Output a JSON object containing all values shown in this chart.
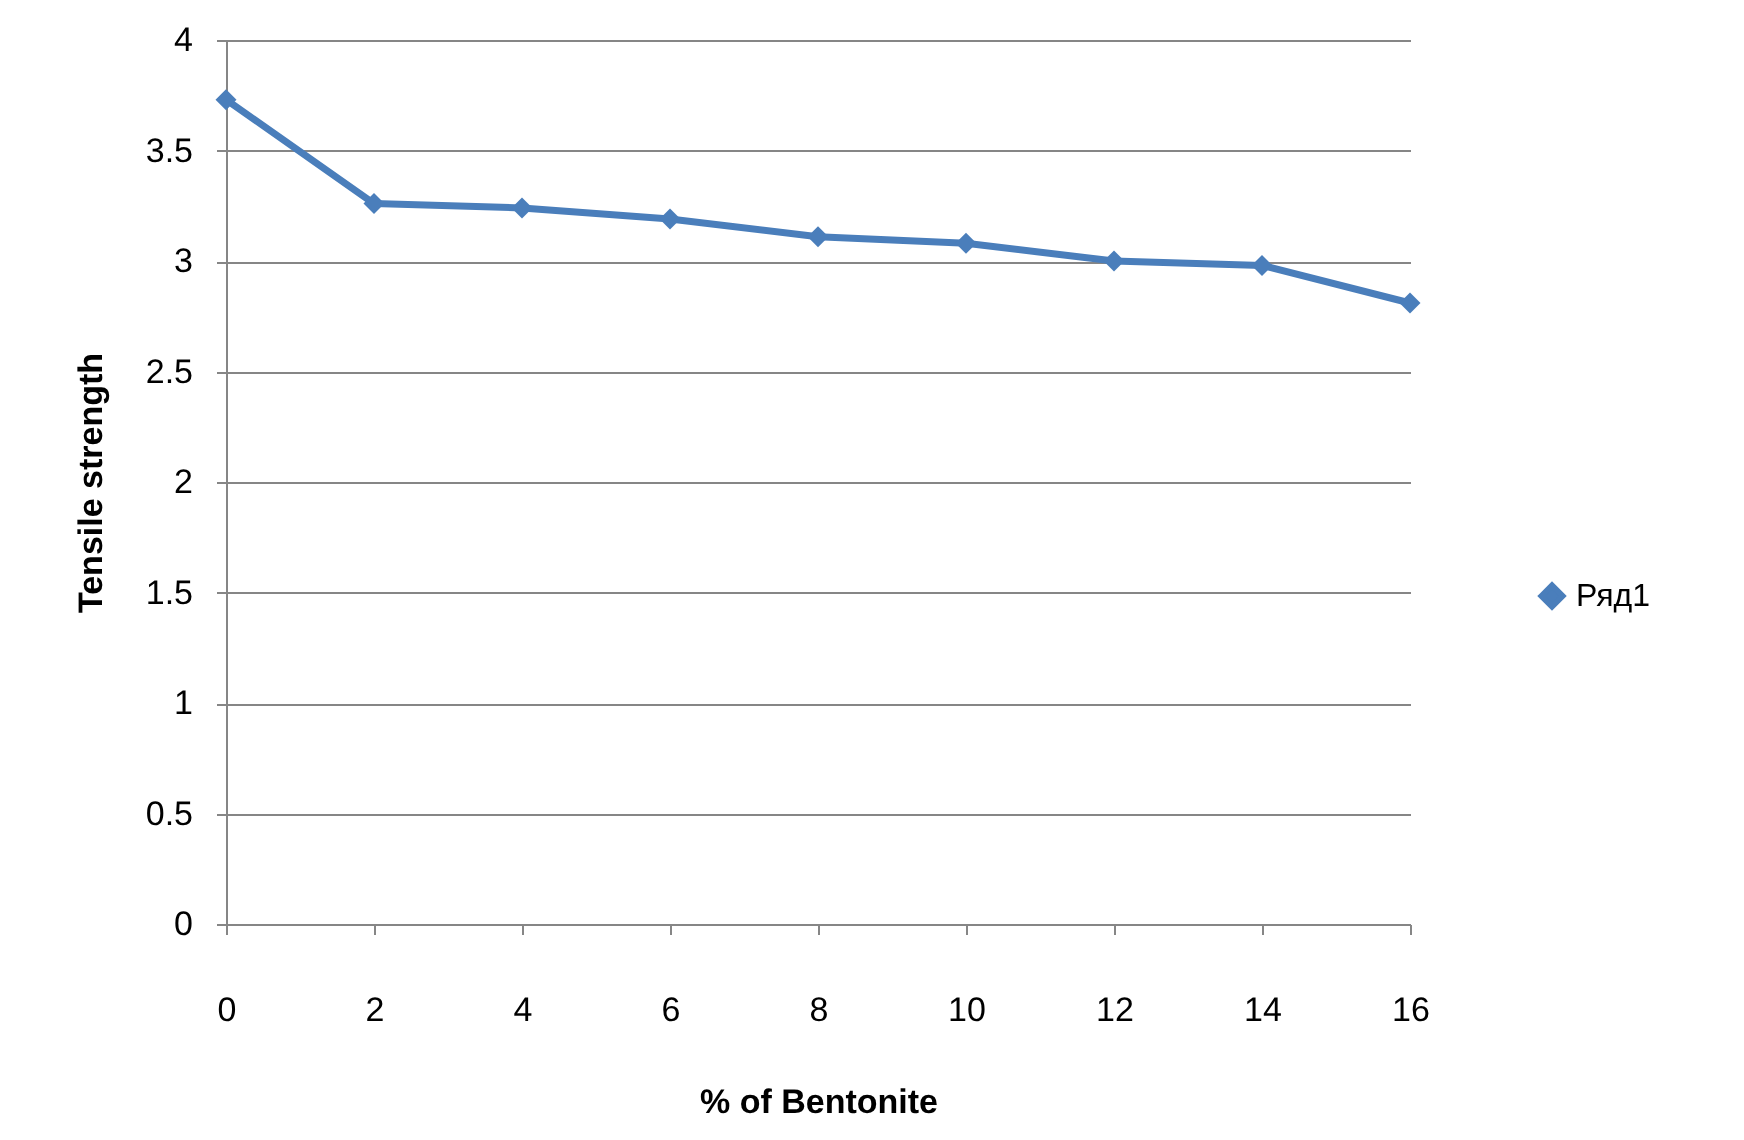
{
  "chart_data": {
    "type": "line",
    "xlabel": "% of Bentonite",
    "ylabel": "Tensile strength",
    "x": [
      0,
      2,
      4,
      6,
      8,
      10,
      12,
      14,
      16
    ],
    "series": [
      {
        "name": "Ряд1",
        "color": "#4a7ebb",
        "values": [
          3.73,
          3.26,
          3.24,
          3.19,
          3.11,
          3.08,
          3.0,
          2.98,
          2.81
        ]
      }
    ],
    "xlim": [
      0,
      16
    ],
    "xticks": [
      0,
      2,
      4,
      6,
      8,
      10,
      12,
      14,
      16
    ],
    "ylim": [
      0,
      4
    ],
    "yticks": [
      0,
      0.5,
      1,
      1.5,
      2,
      2.5,
      3,
      3.5,
      4
    ],
    "grid": "y",
    "legend": "right",
    "marker": "diamond",
    "line_style": "solid"
  }
}
